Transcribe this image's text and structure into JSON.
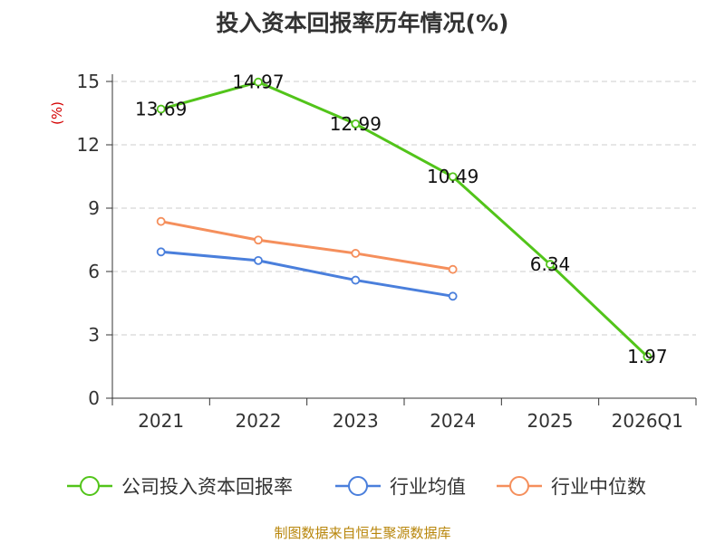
{
  "chart_data": {
    "type": "line",
    "title": "投入资本回报率历年情况(%)",
    "ylabel": "(%)",
    "xlabel": "",
    "categories": [
      "2021",
      "2022",
      "2023",
      "2024",
      "2025",
      "2026Q1"
    ],
    "ylim": [
      0,
      15
    ],
    "yticks": [
      0,
      3,
      6,
      9,
      12,
      15
    ],
    "grid": true,
    "legend_position": "bottom",
    "series": [
      {
        "name": "公司投入资本回报率",
        "color": "#52c41a",
        "values": [
          13.69,
          14.97,
          12.99,
          10.49,
          6.34,
          1.97
        ],
        "labels": [
          "13.69",
          "14.97",
          "12.99",
          "10.49",
          "6.34",
          "1.97"
        ]
      },
      {
        "name": "行业均值",
        "color": "#4a7fdc",
        "values": [
          6.93,
          6.52,
          5.59,
          4.83,
          null,
          null
        ]
      },
      {
        "name": "行业中位数",
        "color": "#f58f5c",
        "values": [
          8.37,
          7.49,
          6.86,
          6.1,
          null,
          null
        ]
      }
    ],
    "source": "制图数据来自恒生聚源数据库"
  }
}
